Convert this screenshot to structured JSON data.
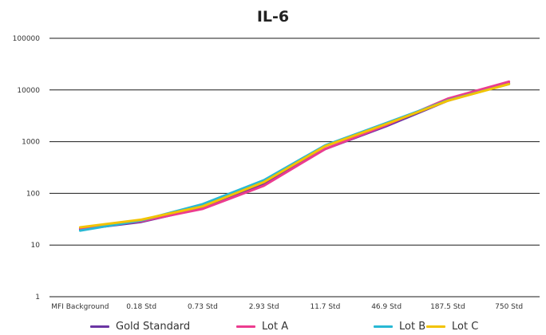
{
  "chart_data": {
    "type": "line",
    "title": "IL-6",
    "xlabel": "",
    "ylabel": "",
    "yscale": "log",
    "ylim": [
      1,
      100000
    ],
    "grid": true,
    "legend_position": "bottom",
    "categories": [
      "MFI Background",
      "0.18 Std",
      "0.73 Std",
      "2.93 Std",
      "11.7 Std",
      "46.9 Std",
      "187.5 Std",
      "750 Std"
    ],
    "y_ticks": [
      "1",
      "10",
      "100",
      "1000",
      "10000",
      "100000"
    ],
    "series": [
      {
        "name": "Gold Standard",
        "color": "#6b35a3",
        "values": [
          20,
          28,
          52,
          150,
          720,
          2000,
          6200,
          13500
        ]
      },
      {
        "name": "Lot A",
        "color": "#ec3c8f",
        "values": [
          21,
          29,
          50,
          140,
          720,
          2100,
          6800,
          14500
        ]
      },
      {
        "name": "Lot B",
        "color": "#28b8d4",
        "values": [
          19,
          30,
          62,
          180,
          850,
          2300,
          6300,
          13000
        ]
      },
      {
        "name": "Lot C",
        "color": "#f2c300",
        "values": [
          22,
          31,
          56,
          165,
          820,
          2200,
          6200,
          13000
        ]
      }
    ]
  }
}
